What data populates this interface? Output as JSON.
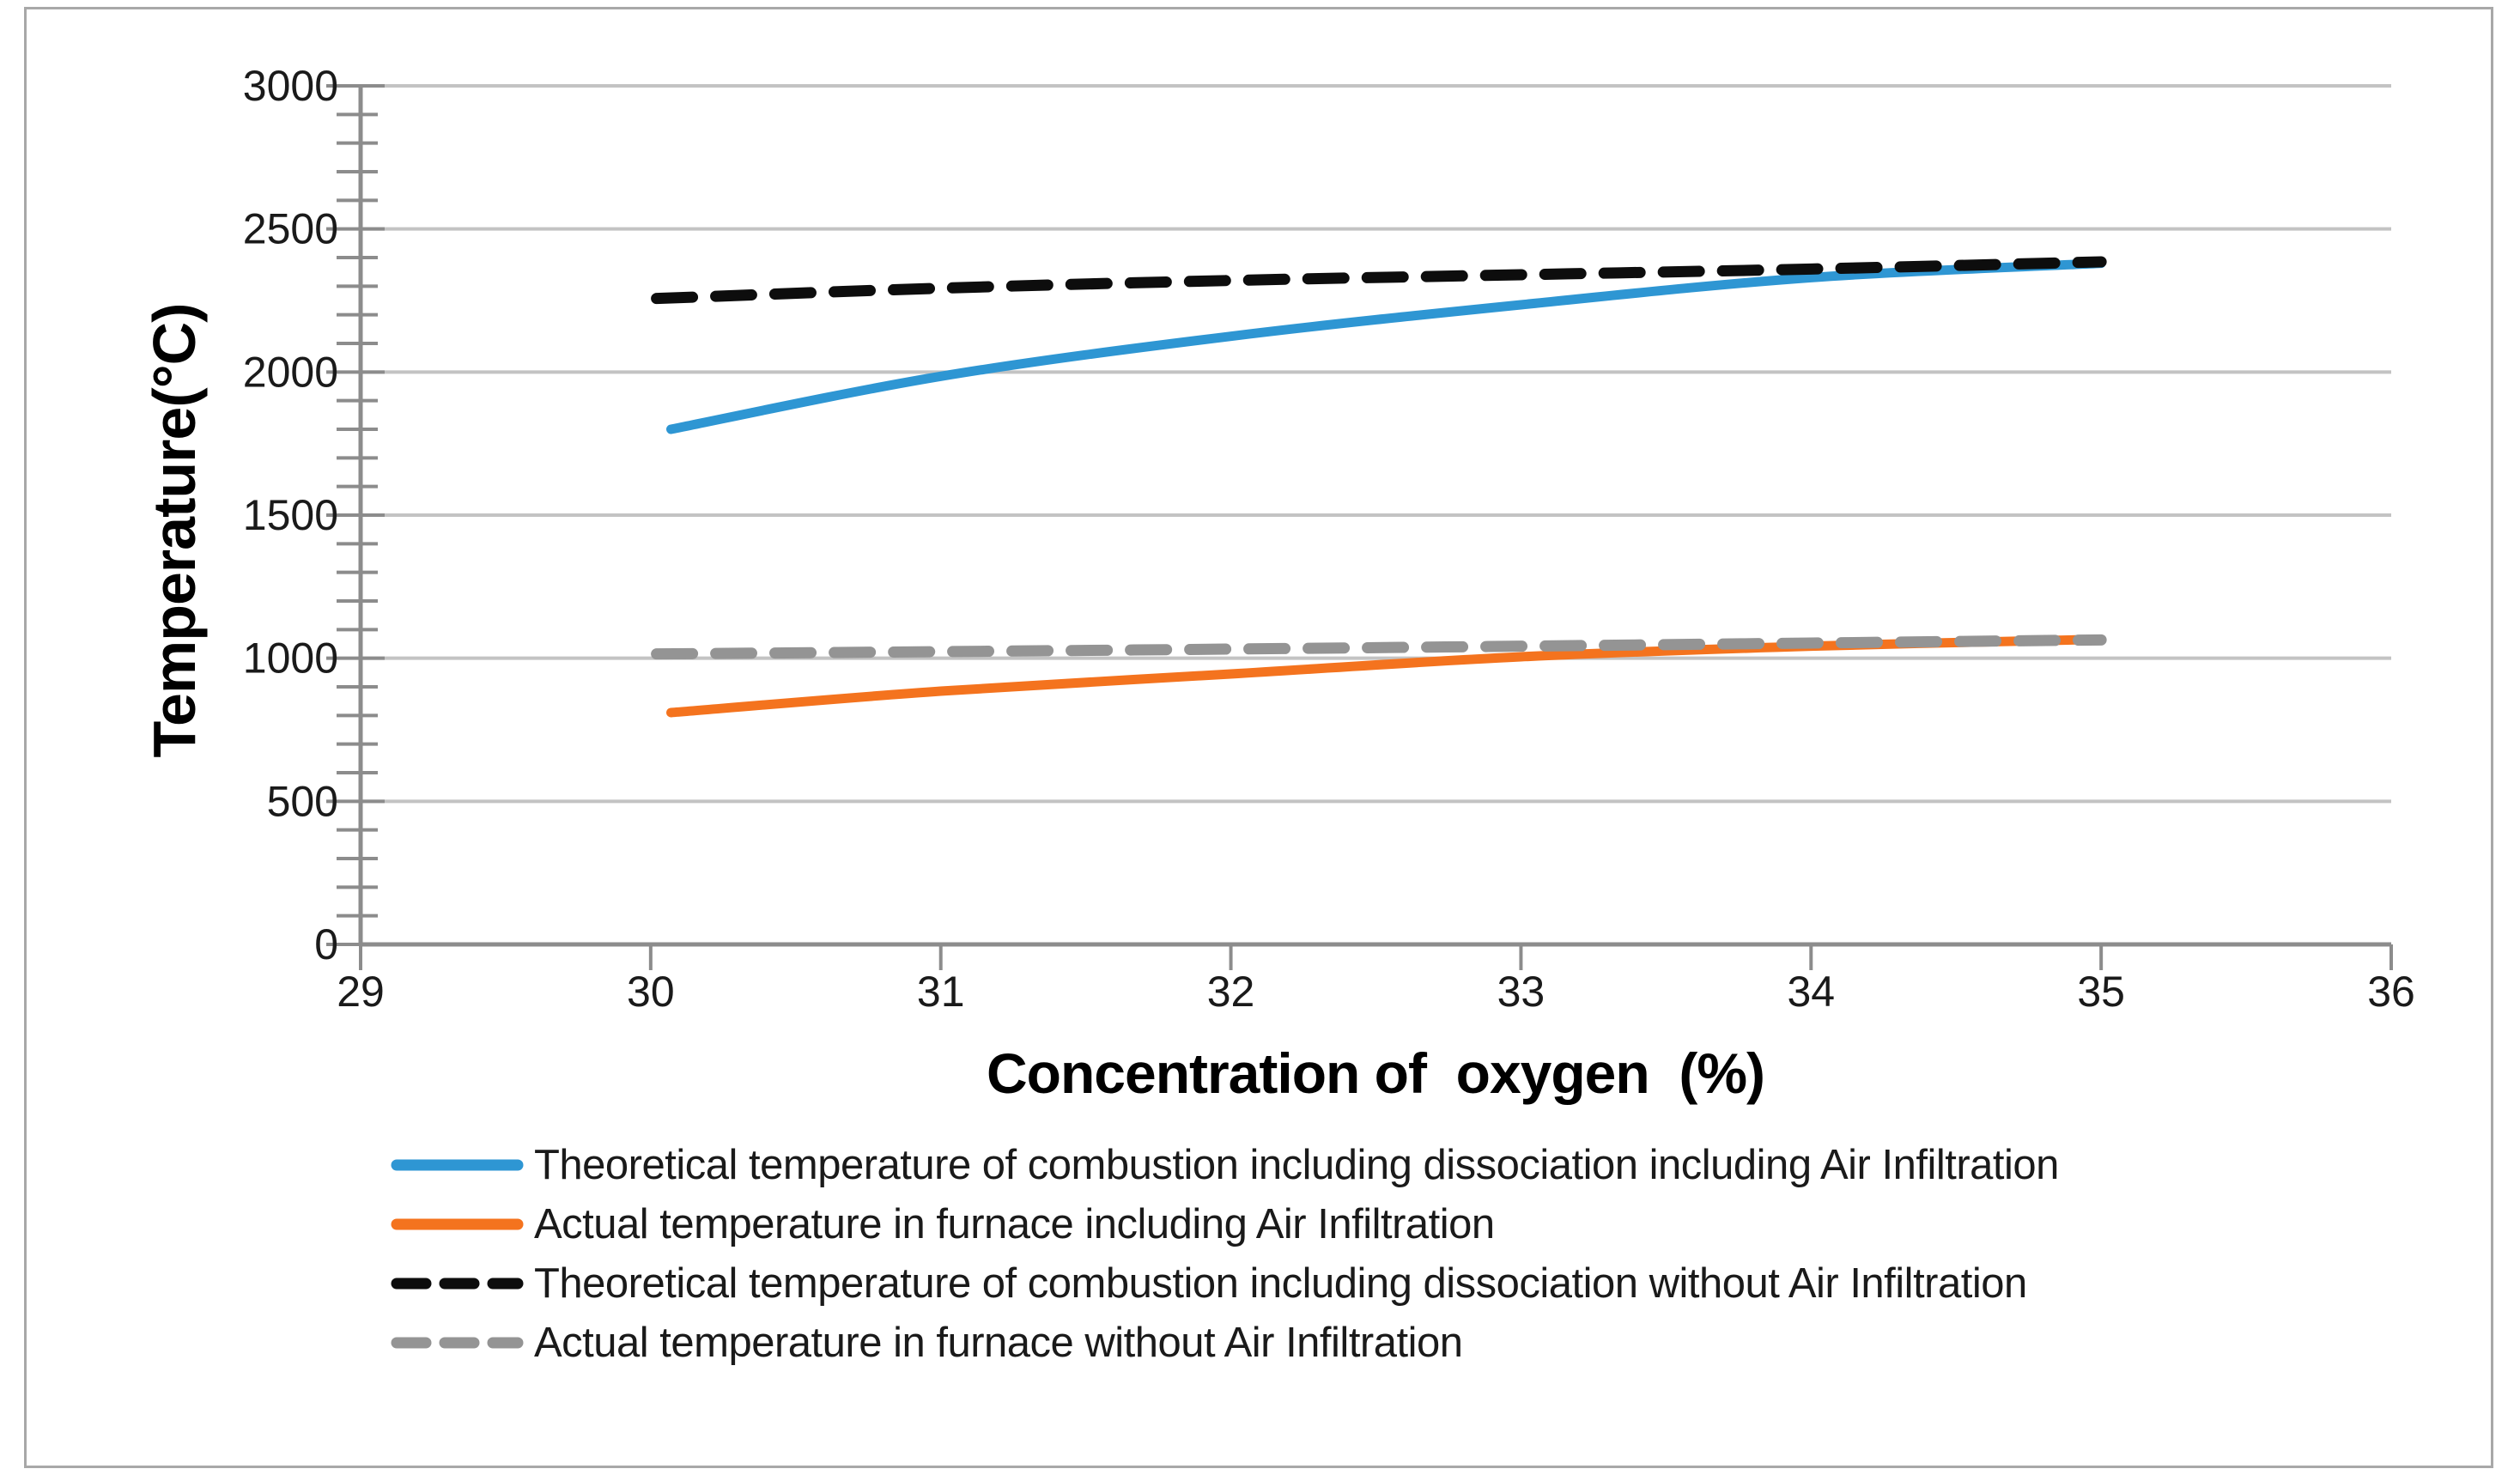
{
  "figure": {
    "background": "#ffffff",
    "border_color": "#a8a8a8"
  },
  "chart_data": {
    "type": "line",
    "title": "",
    "xlabel": "Concentration of  oxygen  (%)",
    "ylabel": "Temperature(°C)",
    "xlim": [
      29,
      36
    ],
    "ylim": [
      0,
      3000
    ],
    "x_ticks": [
      29,
      30,
      31,
      32,
      33,
      34,
      35,
      36
    ],
    "y_ticks": [
      0,
      500,
      1000,
      1500,
      2000,
      2500,
      3000
    ],
    "y_minor_step": 100,
    "grid": "horizontal-major-only",
    "legend_position": "bottom-left",
    "series": [
      {
        "name": "Theoretical temperature of combustion including dissociation including Air Infiltration",
        "color": "#2e96d3",
        "style": "solid",
        "points": [
          [
            30.07,
            1800
          ],
          [
            31,
            1985
          ],
          [
            32,
            2125
          ],
          [
            33,
            2235
          ],
          [
            34,
            2330
          ],
          [
            35,
            2380
          ]
        ]
      },
      {
        "name": "Actual temperature in furnace including Air Infiltration",
        "color": "#f4731e",
        "style": "solid",
        "points": [
          [
            30.07,
            810
          ],
          [
            31,
            885
          ],
          [
            32,
            945
          ],
          [
            33,
            1005
          ],
          [
            34,
            1042
          ],
          [
            35,
            1066
          ]
        ]
      },
      {
        "name": "Theoretical temperature of combustion including dissociation without Air Infiltration",
        "color": "#0d0d0d",
        "style": "dashed",
        "points": [
          [
            30.02,
            2257
          ],
          [
            31,
            2293
          ],
          [
            32,
            2320
          ],
          [
            33,
            2340
          ],
          [
            34,
            2360
          ],
          [
            35,
            2385
          ]
        ]
      },
      {
        "name": "Actual temperature in furnace without Air Infiltration",
        "color": "#949494",
        "style": "dashed",
        "points": [
          [
            30.02,
            1015
          ],
          [
            31,
            1023
          ],
          [
            32,
            1032
          ],
          [
            33,
            1042
          ],
          [
            34,
            1053
          ],
          [
            35,
            1064
          ]
        ]
      }
    ],
    "style": {
      "gridline_color": "#c3c3c3",
      "axis_color": "#8c8c8c",
      "tick_label_color": "#1a1a1a",
      "line_width": 11,
      "dash_pattern": "42 27"
    }
  }
}
